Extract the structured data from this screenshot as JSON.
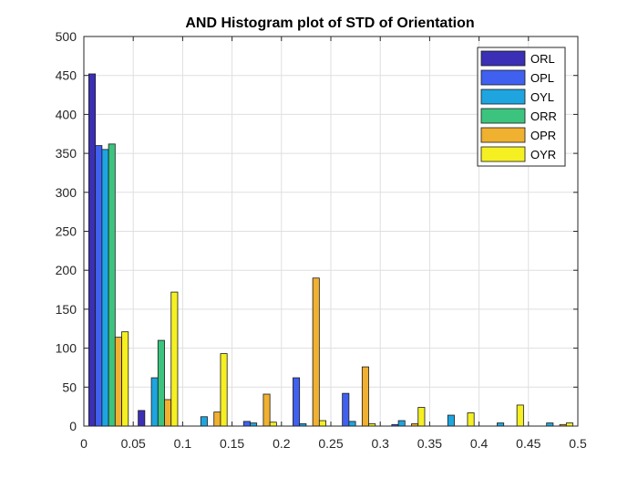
{
  "chart_data": {
    "type": "bar",
    "title": "AND Histogram plot of STD of Orientation",
    "xlabel": "",
    "ylabel": "",
    "xlim": [
      0,
      0.5
    ],
    "ylim": [
      0,
      500
    ],
    "grid": true,
    "legend_position": "top-right",
    "x_ticks": [
      "0",
      "0.05",
      "0.1",
      "0.15",
      "0.2",
      "0.25",
      "0.3",
      "0.35",
      "0.4",
      "0.45",
      "0.5"
    ],
    "y_ticks": [
      "0",
      "50",
      "100",
      "150",
      "200",
      "250",
      "300",
      "350",
      "400",
      "450",
      "500"
    ],
    "bin_edges": [
      0,
      0.05,
      0.1,
      0.15,
      0.2,
      0.25,
      0.3,
      0.35,
      0.4,
      0.45,
      0.5
    ],
    "series": [
      {
        "name": "ORL",
        "color": "#3b2fb5",
        "values": [
          452,
          20,
          0,
          0,
          0,
          0,
          0,
          0,
          0,
          0
        ]
      },
      {
        "name": "OPL",
        "color": "#4060f0",
        "values": [
          360,
          0,
          0,
          6,
          62,
          42,
          2,
          0,
          0,
          0
        ]
      },
      {
        "name": "OYL",
        "color": "#1ea5e0",
        "values": [
          355,
          62,
          12,
          4,
          3,
          6,
          7,
          14,
          4,
          4
        ]
      },
      {
        "name": "ORR",
        "color": "#3cc47e",
        "values": [
          362,
          110,
          0,
          0,
          0,
          0,
          0,
          0,
          0,
          0
        ]
      },
      {
        "name": "OPR",
        "color": "#f0b030",
        "values": [
          114,
          34,
          18,
          41,
          190,
          76,
          3,
          0,
          0,
          2
        ]
      },
      {
        "name": "OYR",
        "color": "#f5f022",
        "values": [
          121,
          172,
          93,
          5,
          7,
          3,
          24,
          17,
          27,
          4
        ]
      }
    ]
  }
}
